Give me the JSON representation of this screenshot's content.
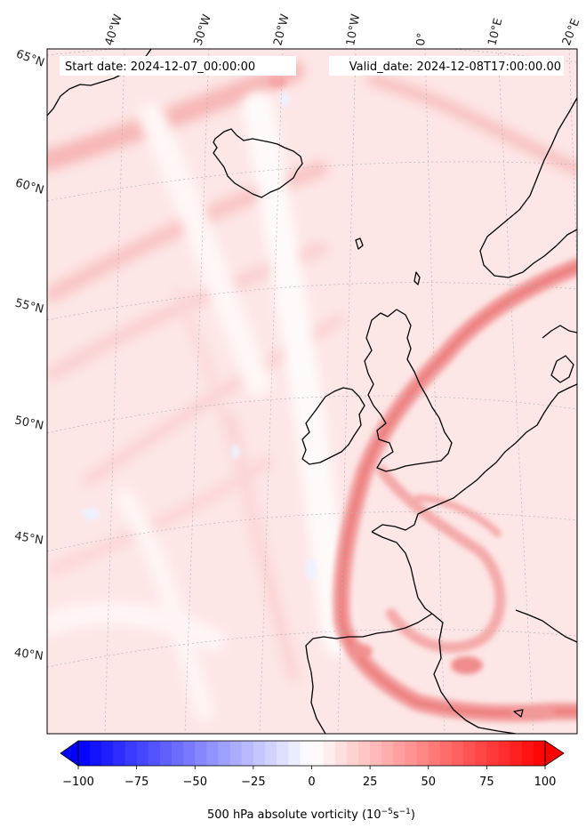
{
  "header": {
    "start_date": "Start date: 2024-12-07_00:00:00",
    "valid_date": "Valid_date: 2024-12-08T17:00:00.00"
  },
  "map": {
    "projection": "conic",
    "field": "500 hPa absolute vorticity",
    "lon_labels": [
      "40°W",
      "30°W",
      "20°W",
      "10°W",
      "0°",
      "10°E",
      "20°E"
    ],
    "lat_labels": [
      "65°N",
      "60°N",
      "55°N",
      "50°N",
      "45°N",
      "40°N"
    ],
    "gridlines": true,
    "coastlines": true
  },
  "colorbar": {
    "vmin": -100,
    "vmax": 100,
    "levels": 41,
    "extend": "both",
    "ticks": [
      "−100",
      "−75",
      "−50",
      "−25",
      "0",
      "25",
      "50",
      "75",
      "100"
    ],
    "label_main": "500 hPa absolute vorticity (10",
    "label_exp1": "−5",
    "label_mid": "s",
    "label_exp2": "−1",
    "label_end": ")",
    "color_low": "#0000ff",
    "color_mid": "#ffffff",
    "color_high": "#ff0000"
  }
}
